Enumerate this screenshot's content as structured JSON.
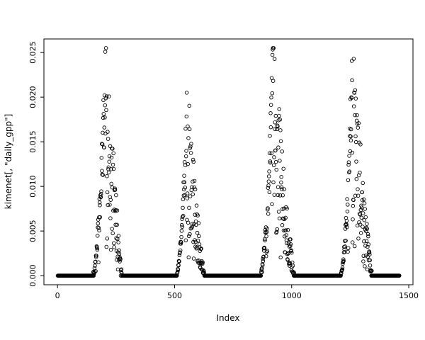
{
  "chart_data": {
    "type": "scatter",
    "title": "",
    "xlabel": "Index",
    "ylabel": "kimenet[, \"daily_gpp\"]",
    "x_ticks": [
      0,
      500,
      1000,
      1500
    ],
    "x_tick_labels": [
      "0",
      "500",
      "1000",
      "1500"
    ],
    "y_ticks": [
      0.0,
      0.005,
      0.01,
      0.015,
      0.02,
      0.025
    ],
    "y_tick_labels": [
      "0.000",
      "0.005",
      "0.010",
      "0.015",
      "0.020",
      "0.025"
    ],
    "xlim": [
      -58,
      1518
    ],
    "ylim": [
      -0.00102,
      0.02652
    ],
    "grid": false,
    "legend": "none",
    "marker": "open-circle",
    "marker_color": "#000000",
    "background": "#ffffff",
    "n_points": 1460,
    "baseline_value": 0.0,
    "seasons": [
      {
        "start": 145,
        "peak_x": 205,
        "end": 278,
        "peak_y": 0.0255
      },
      {
        "start": 505,
        "peak_x": 552,
        "end": 628,
        "peak_y": 0.0205
      },
      {
        "start": 861,
        "peak_x": 921,
        "end": 1012,
        "peak_y": 0.0255
      },
      {
        "start": 1205,
        "peak_x": 1258,
        "end": 1345,
        "peak_y": 0.0245
      }
    ],
    "seed": 42
  }
}
